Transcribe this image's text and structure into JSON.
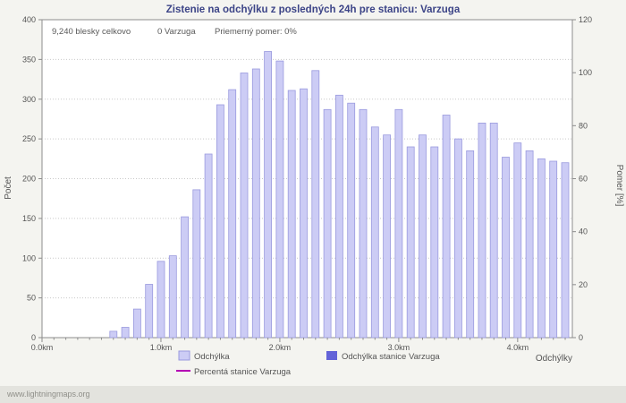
{
  "watermark": "www.lightningmaps.org",
  "stats": {
    "total": "9,240 blesky celkovo",
    "station": "0 Varzuga",
    "avg_ratio": "Priemerný pomer: 0%"
  },
  "colors": {
    "page_bg": "#f4f4f0",
    "footer_bg": "#e3e3de",
    "plot_bg": "#ffffff",
    "title": "#3c4487",
    "text": "#555555",
    "grid": "#c9c9c9",
    "axis": "#8c8c8c",
    "bar_fill": "#ccccf5",
    "bar_stroke": "#9a9ade",
    "station_bar": "#6363d8",
    "percent_line": "#b400b4"
  },
  "chart_data": {
    "type": "bar",
    "title": "Zistenie na odchýlku z posledných 24h pre stanicu: Varzuga",
    "xlabel": "Odchýlky",
    "ylabel_left": "Počet",
    "ylabel_right": "Pomer [%]",
    "ylim_left": [
      0,
      400
    ],
    "ylim_right": [
      0,
      120
    ],
    "xlim_km": [
      0,
      4.46
    ],
    "bin_width_km": 0.1,
    "grid": "horizontal dotted",
    "legend_position": "bottom",
    "left_ticks": [
      0,
      50,
      100,
      150,
      200,
      250,
      300,
      350,
      400
    ],
    "right_ticks": [
      0,
      20,
      40,
      60,
      80,
      100,
      120
    ],
    "x_tick_km": [
      0,
      1,
      2,
      3,
      4
    ],
    "x_tick_labels": [
      "0.0km",
      "1.0km",
      "2.0km",
      "3.0km",
      "4.0km"
    ],
    "x_km": [
      0.6,
      0.7,
      0.8,
      0.9,
      1.0,
      1.1,
      1.2,
      1.3,
      1.4,
      1.5,
      1.6,
      1.7,
      1.8,
      1.9,
      2.0,
      2.1,
      2.2,
      2.3,
      2.4,
      2.5,
      2.6,
      2.7,
      2.8,
      2.9,
      3.0,
      3.1,
      3.2,
      3.3,
      3.4,
      3.5,
      3.6,
      3.7,
      3.8,
      3.9,
      4.0,
      4.1,
      4.2,
      4.3,
      4.4
    ],
    "series": [
      {
        "name": "Odchýlka",
        "values": [
          8,
          13,
          36,
          67,
          96,
          103,
          152,
          186,
          231,
          293,
          312,
          333,
          338,
          360,
          348,
          311,
          313,
          336,
          287,
          305,
          295,
          287,
          265,
          255,
          287,
          240,
          255,
          240,
          280,
          250,
          235,
          270,
          270,
          227,
          245,
          235,
          225,
          222,
          220
        ]
      },
      {
        "name": "Odchýlka stanice Varzuga",
        "values": [
          0,
          0,
          0,
          0,
          0,
          0,
          0,
          0,
          0,
          0,
          0,
          0,
          0,
          0,
          0,
          0,
          0,
          0,
          0,
          0,
          0,
          0,
          0,
          0,
          0,
          0,
          0,
          0,
          0,
          0,
          0,
          0,
          0,
          0,
          0,
          0,
          0,
          0,
          0
        ]
      },
      {
        "name": "Percentá stanice Varzuga",
        "axis": "right",
        "constant": 0
      }
    ]
  }
}
